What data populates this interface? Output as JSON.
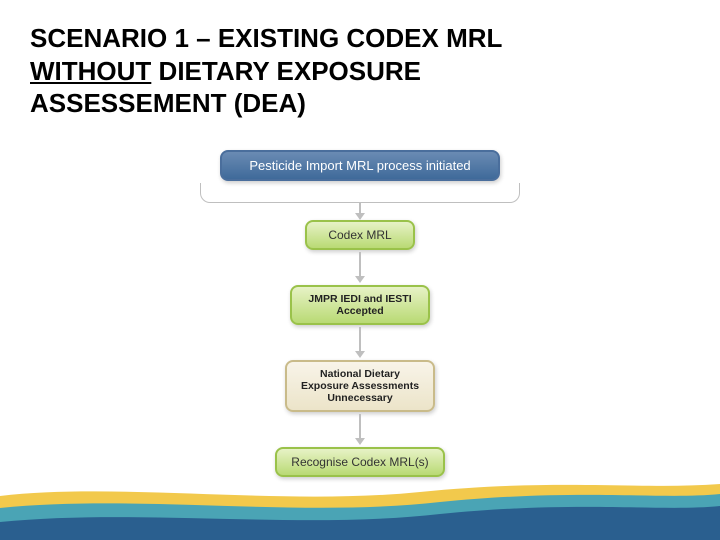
{
  "title": {
    "line1_a": "SCENARIO 1 – EXISTING CODEX MRL",
    "line2_underlined": "WITHOUT",
    "line2_b": " DIETARY EXPOSURE",
    "line3": "ASSESSEMENT (DEA)",
    "fontsize": 26,
    "color": "#000000"
  },
  "flowchart": {
    "type": "flowchart",
    "bracket_width": 320,
    "connector_color": "#bfbfbf",
    "nodes": [
      {
        "id": "start",
        "text": "Pesticide Import MRL process initiated",
        "bg_top": "#6a8bb3",
        "bg_bottom": "#3f6a9a",
        "border": "#4a6e9c",
        "text_color": "#ffffff",
        "fontsize": 13,
        "min_width": 280
      },
      {
        "id": "codex",
        "text": "Codex MRL",
        "bg_top": "#e7f2c6",
        "bg_bottom": "#b9da74",
        "border": "#9ac24a",
        "text_color": "#333333",
        "fontsize": 12,
        "min_width": 110
      },
      {
        "id": "jmpr",
        "text": "JMPR IEDI and IESTI\nAccepted",
        "bg_top": "#e7f2c6",
        "bg_bottom": "#b9da74",
        "border": "#9ac24a",
        "text_color": "#222222",
        "fontsize": 10.5,
        "font_weight": "bold",
        "min_width": 140
      },
      {
        "id": "national",
        "text": "National Dietary\nExposure Assessments\nUnnecessary",
        "bg_top": "#f8f4e9",
        "bg_bottom": "#ece4c9",
        "border": "#c9bb8a",
        "text_color": "#222222",
        "fontsize": 10.5,
        "font_weight": "bold",
        "min_width": 150
      },
      {
        "id": "recognise",
        "text": "Recognise Codex MRL(s)",
        "bg_top": "#e7f2c6",
        "bg_bottom": "#b9da74",
        "border": "#9ac24a",
        "text_color": "#333333",
        "fontsize": 12,
        "min_width": 170
      }
    ],
    "connectors": [
      {
        "after": "start",
        "type": "bracket"
      },
      {
        "after": "codex",
        "type": "arrow",
        "length": 24
      },
      {
        "after": "jmpr",
        "type": "arrow",
        "length": 24
      },
      {
        "after": "national",
        "type": "arrow",
        "length": 24
      }
    ]
  },
  "footer": {
    "colors": {
      "yellow": "#f2c94c",
      "teal": "#4aa4b5",
      "blue": "#2a5f8f"
    }
  }
}
